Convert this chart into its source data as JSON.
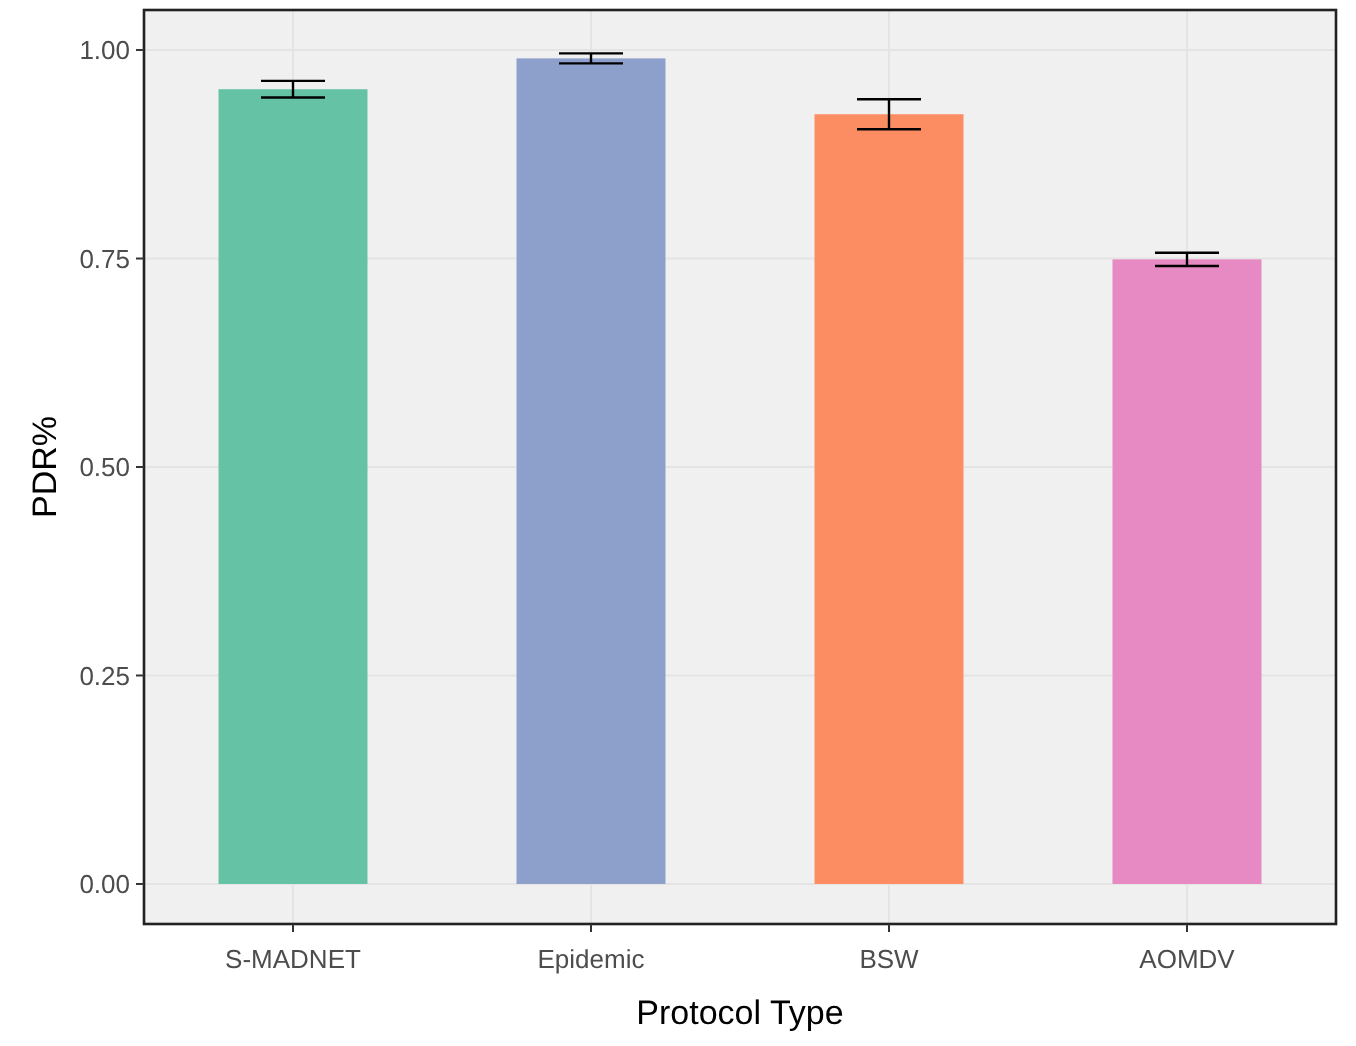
{
  "chart_data": {
    "type": "bar",
    "xlabel": "Protocol Type",
    "ylabel": "PDR%",
    "categories": [
      "S-MADNET",
      "Epidemic",
      "BSW",
      "AOMDV"
    ],
    "values": [
      0.953,
      0.99,
      0.923,
      0.749
    ],
    "errors": [
      0.01,
      0.006,
      0.018,
      0.008
    ],
    "colors": [
      "#66c2a5",
      "#8da0cb",
      "#fc8d62",
      "#e78ac3"
    ],
    "ylim": [
      -0.048,
      1.048
    ],
    "yticks": [
      {
        "value": 0,
        "label": "0.00"
      },
      {
        "value": 0.25,
        "label": "0.25"
      },
      {
        "value": 0.5,
        "label": "0.50"
      },
      {
        "value": 0.75,
        "label": "0.75"
      },
      {
        "value": 1,
        "label": "1.00"
      }
    ],
    "grid": true
  }
}
